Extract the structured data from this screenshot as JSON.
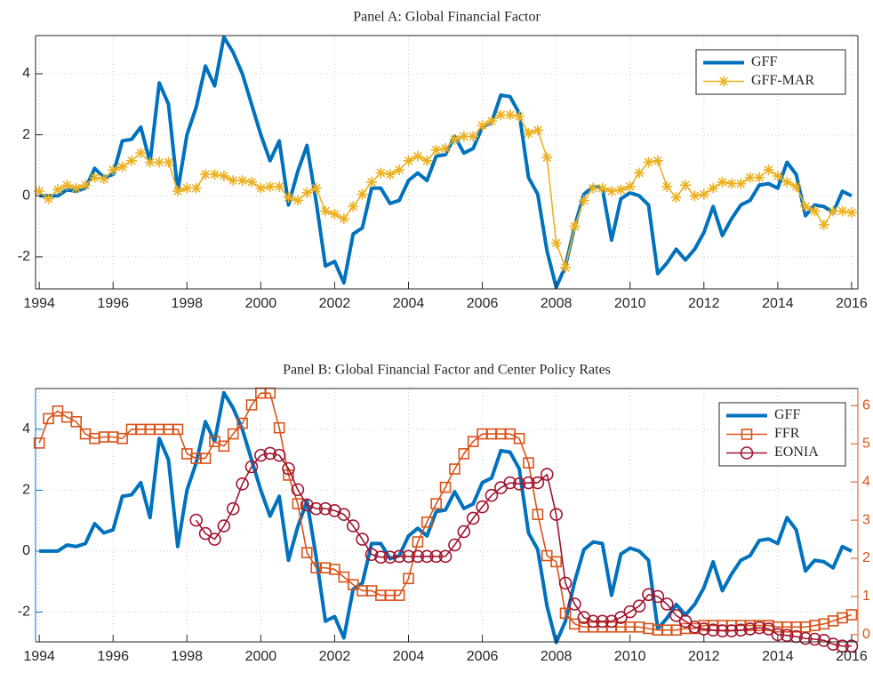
{
  "chart_data": [
    {
      "type": "line",
      "title": "Panel A: Global Financial Factor",
      "x": [
        1994,
        1994.25,
        1994.5,
        1994.75,
        1995,
        1995.25,
        1995.5,
        1995.75,
        1996,
        1996.25,
        1996.5,
        1996.75,
        1997,
        1997.25,
        1997.5,
        1997.75,
        1998,
        1998.25,
        1998.5,
        1998.75,
        1999,
        1999.25,
        1999.5,
        1999.75,
        2000,
        2000.25,
        2000.5,
        2000.75,
        2001,
        2001.25,
        2001.5,
        2001.75,
        2002,
        2002.25,
        2002.5,
        2002.75,
        2003,
        2003.25,
        2003.5,
        2003.75,
        2004,
        2004.25,
        2004.5,
        2004.75,
        2005,
        2005.25,
        2005.5,
        2005.75,
        2006,
        2006.25,
        2006.5,
        2006.75,
        2007,
        2007.25,
        2007.5,
        2007.75,
        2008,
        2008.25,
        2008.5,
        2008.75,
        2009,
        2009.25,
        2009.5,
        2009.75,
        2010,
        2010.25,
        2010.5,
        2010.75,
        2011,
        2011.25,
        2011.5,
        2011.75,
        2012,
        2012.25,
        2012.5,
        2012.75,
        2013,
        2013.25,
        2013.5,
        2013.75,
        2014,
        2014.25,
        2014.5,
        2014.75,
        2015,
        2015.25,
        2015.5,
        2015.75,
        2016
      ],
      "xlim": [
        1993.9,
        2016.17
      ],
      "xticks": [
        1994,
        1996,
        1998,
        2000,
        2002,
        2004,
        2006,
        2008,
        2010,
        2012,
        2014,
        2016
      ],
      "ylim": [
        -3.05,
        5.25
      ],
      "yticks": [
        -2,
        0,
        2,
        4
      ],
      "grid": true,
      "legend": "upper right",
      "series": [
        {
          "name": "GFF",
          "color": "#0072BD",
          "marker": "none",
          "width": 4,
          "values": [
            0,
            0,
            0,
            0.2,
            0.15,
            0.25,
            0.9,
            0.6,
            0.7,
            1.8,
            1.85,
            2.25,
            1.1,
            3.7,
            3.0,
            0.15,
            2.0,
            2.9,
            4.25,
            3.6,
            5.2,
            4.7,
            4.0,
            3.0,
            2.0,
            1.15,
            1.8,
            -0.3,
            0.8,
            1.65,
            -0.2,
            -2.3,
            -2.15,
            -2.85,
            -1.25,
            -1.05,
            0.25,
            0.25,
            -0.25,
            -0.15,
            0.5,
            0.75,
            0.5,
            1.3,
            1.35,
            1.95,
            1.4,
            1.55,
            2.25,
            2.4,
            3.3,
            3.25,
            2.7,
            0.6,
            0.05,
            -1.8,
            -3.0,
            -2.3,
            -1.0,
            0.05,
            0.3,
            0.25,
            -1.45,
            -0.1,
            0.1,
            0.0,
            -0.3,
            -2.55,
            -2.2,
            -1.75,
            -2.1,
            -1.75,
            -1.2,
            -0.35,
            -1.3,
            -0.75,
            -0.3,
            -0.15,
            0.35,
            0.4,
            0.25,
            1.1,
            0.7,
            -0.65,
            -0.3,
            -0.35,
            -0.55,
            0.15,
            0.0
          ]
        },
        {
          "name": "GFF-MAR",
          "color": "#EDB120",
          "marker": "asterisk",
          "width": 1.6,
          "values": [
            0.15,
            -0.1,
            0.2,
            0.35,
            0.25,
            0.35,
            0.6,
            0.55,
            0.85,
            0.95,
            1.15,
            1.4,
            1.1,
            1.1,
            1.1,
            0.15,
            0.25,
            0.25,
            0.7,
            0.7,
            0.65,
            0.5,
            0.5,
            0.45,
            0.25,
            0.3,
            0.3,
            -0.05,
            -0.15,
            0.1,
            0.25,
            -0.5,
            -0.6,
            -0.75,
            -0.35,
            0.05,
            0.45,
            0.75,
            0.7,
            0.85,
            1.15,
            1.3,
            1.15,
            1.5,
            1.55,
            1.85,
            1.95,
            1.95,
            2.3,
            2.45,
            2.65,
            2.65,
            2.6,
            2.05,
            2.15,
            1.25,
            -1.55,
            -2.35,
            -1.0,
            -0.15,
            0.25,
            0.25,
            0.15,
            0.2,
            0.3,
            0.75,
            1.1,
            1.15,
            0.3,
            -0.05,
            0.35,
            0.0,
            0.05,
            0.25,
            0.45,
            0.4,
            0.4,
            0.6,
            0.6,
            0.85,
            0.65,
            0.45,
            0.3,
            -0.35,
            -0.5,
            -0.95,
            -0.5,
            -0.5,
            -0.55
          ]
        }
      ]
    },
    {
      "type": "line",
      "title": "Panel B: Global Financial Factor and Center Policy Rates",
      "x": [
        1994,
        1994.25,
        1994.5,
        1994.75,
        1995,
        1995.25,
        1995.5,
        1995.75,
        1996,
        1996.25,
        1996.5,
        1996.75,
        1997,
        1997.25,
        1997.5,
        1997.75,
        1998,
        1998.25,
        1998.5,
        1998.75,
        1999,
        1999.25,
        1999.5,
        1999.75,
        2000,
        2000.25,
        2000.5,
        2000.75,
        2001,
        2001.25,
        2001.5,
        2001.75,
        2002,
        2002.25,
        2002.5,
        2002.75,
        2003,
        2003.25,
        2003.5,
        2003.75,
        2004,
        2004.25,
        2004.5,
        2004.75,
        2005,
        2005.25,
        2005.5,
        2005.75,
        2006,
        2006.25,
        2006.5,
        2006.75,
        2007,
        2007.25,
        2007.5,
        2007.75,
        2008,
        2008.25,
        2008.5,
        2008.75,
        2009,
        2009.25,
        2009.5,
        2009.75,
        2010,
        2010.25,
        2010.5,
        2010.75,
        2011,
        2011.25,
        2011.5,
        2011.75,
        2012,
        2012.25,
        2012.5,
        2012.75,
        2013,
        2013.25,
        2013.5,
        2013.75,
        2014,
        2014.25,
        2014.5,
        2014.75,
        2015,
        2015.25,
        2015.5,
        2015.75,
        2016
      ],
      "xlim": [
        1993.9,
        2016.17
      ],
      "xticks": [
        1994,
        1996,
        1998,
        2000,
        2002,
        2004,
        2006,
        2008,
        2010,
        2012,
        2014,
        2016
      ],
      "ylim": [
        -2.98,
        5.34
      ],
      "yticks": [
        -2,
        0,
        2,
        4
      ],
      "y2lim": [
        -0.19,
        6.45
      ],
      "y2ticks": [
        0,
        1,
        2,
        3,
        4,
        5,
        6
      ],
      "y_axis_color": "#0072BD",
      "y2_axis_color": "#D95319",
      "grid": true,
      "legend": "upper right",
      "series": [
        {
          "name": "GFF",
          "color": "#0072BD",
          "marker": "none",
          "width": 4,
          "values": [
            0,
            0,
            0,
            0.2,
            0.15,
            0.25,
            0.9,
            0.6,
            0.7,
            1.8,
            1.85,
            2.25,
            1.1,
            3.7,
            3.0,
            0.15,
            2.0,
            2.9,
            4.25,
            3.6,
            5.2,
            4.7,
            4.0,
            3.0,
            2.0,
            1.15,
            1.8,
            -0.3,
            0.8,
            1.65,
            -0.2,
            -2.3,
            -2.15,
            -2.85,
            -1.25,
            -1.05,
            0.25,
            0.25,
            -0.25,
            -0.15,
            0.5,
            0.75,
            0.5,
            1.3,
            1.35,
            1.95,
            1.4,
            1.55,
            2.25,
            2.4,
            3.3,
            3.25,
            2.7,
            0.6,
            0.05,
            -1.8,
            -3.0,
            -2.3,
            -1.0,
            0.05,
            0.3,
            0.25,
            -1.45,
            -0.1,
            0.1,
            0.0,
            -0.3,
            -2.55,
            -2.2,
            -1.75,
            -2.1,
            -1.75,
            -1.2,
            -0.35,
            -1.3,
            -0.75,
            -0.3,
            -0.15,
            0.35,
            0.4,
            0.25,
            1.1,
            0.7,
            -0.65,
            -0.3,
            -0.35,
            -0.55,
            0.15,
            0.0
          ]
        },
        {
          "name": "FFR",
          "color": "#D95319",
          "marker": "square",
          "width": 1.6,
          "axis": "y2",
          "values": [
            5.02,
            5.66,
            5.86,
            5.7,
            5.58,
            5.26,
            5.14,
            5.18,
            5.18,
            5.14,
            5.38,
            5.38,
            5.38,
            5.38,
            5.38,
            5.38,
            4.74,
            4.62,
            4.62,
            5.06,
            4.94,
            5.26,
            5.54,
            6.02,
            6.33,
            6.33,
            5.42,
            4.18,
            3.43,
            2.15,
            1.75,
            1.75,
            1.71,
            1.51,
            1.31,
            1.15,
            1.15,
            1.03,
            1.03,
            1.03,
            1.47,
            2.43,
            2.95,
            3.43,
            3.86,
            4.34,
            4.74,
            5.06,
            5.26,
            5.26,
            5.26,
            5.26,
            5.14,
            4.5,
            3.15,
            2.07,
            1.91,
            0.56,
            0.28,
            0.2,
            0.2,
            0.2,
            0.2,
            0.2,
            0.2,
            0.2,
            0.16,
            0.12,
            0.12,
            0.12,
            0.16,
            0.16,
            0.24,
            0.24,
            0.24,
            0.24,
            0.24,
            0.24,
            0.24,
            0.24,
            0.2,
            0.2,
            0.2,
            0.2,
            0.24,
            0.28,
            0.36,
            0.44,
            0.52
          ]
        },
        {
          "name": "EONIA",
          "color": "#A2142F",
          "marker": "circle",
          "width": 1.6,
          "axis": "y2",
          "values": [
            null,
            null,
            null,
            null,
            null,
            null,
            null,
            null,
            null,
            null,
            null,
            null,
            null,
            null,
            null,
            null,
            null,
            3.0,
            2.65,
            2.5,
            2.85,
            3.3,
            3.95,
            4.4,
            4.7,
            4.75,
            4.7,
            4.35,
            3.8,
            3.4,
            3.3,
            3.3,
            3.25,
            3.15,
            2.85,
            2.5,
            2.1,
            2.03,
            2.03,
            2.05,
            2.05,
            2.05,
            2.05,
            2.05,
            2.05,
            2.35,
            2.7,
            3.05,
            3.35,
            3.65,
            3.85,
            3.98,
            3.95,
            3.98,
            3.98,
            4.2,
            3.15,
            1.35,
            0.8,
            0.45,
            0.35,
            0.35,
            0.35,
            0.45,
            0.6,
            0.75,
            1.05,
            1.0,
            0.8,
            0.5,
            0.35,
            0.2,
            0.15,
            0.12,
            0.1,
            0.1,
            0.12,
            0.15,
            0.18,
            0.15,
            0.0,
            -0.02,
            -0.05,
            -0.1,
            -0.12,
            -0.15,
            -0.25,
            -0.3,
            -0.3
          ]
        }
      ]
    }
  ]
}
